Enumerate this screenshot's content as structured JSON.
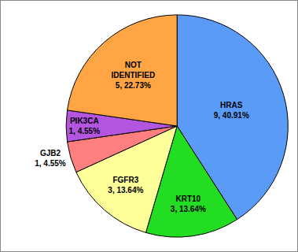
{
  "chart_data": {
    "type": "pie",
    "categories": [
      "HRAS",
      "KRT10",
      "FGFR3",
      "GJB2",
      "PIK3CA",
      "NOT IDENTIFIED"
    ],
    "values": [
      9,
      3,
      3,
      1,
      1,
      5
    ],
    "value_labels": [
      "9, 40.91%",
      "3, 13.64%",
      "3, 13.64%",
      "1, 4.55%",
      "1, 4.55%",
      "5, 22.73%"
    ],
    "colors": [
      "#5b9bf8",
      "#22dd22",
      "#ffff99",
      "#ff7f7f",
      "#b455e0",
      "#ffa544"
    ],
    "data_labels": true
  }
}
